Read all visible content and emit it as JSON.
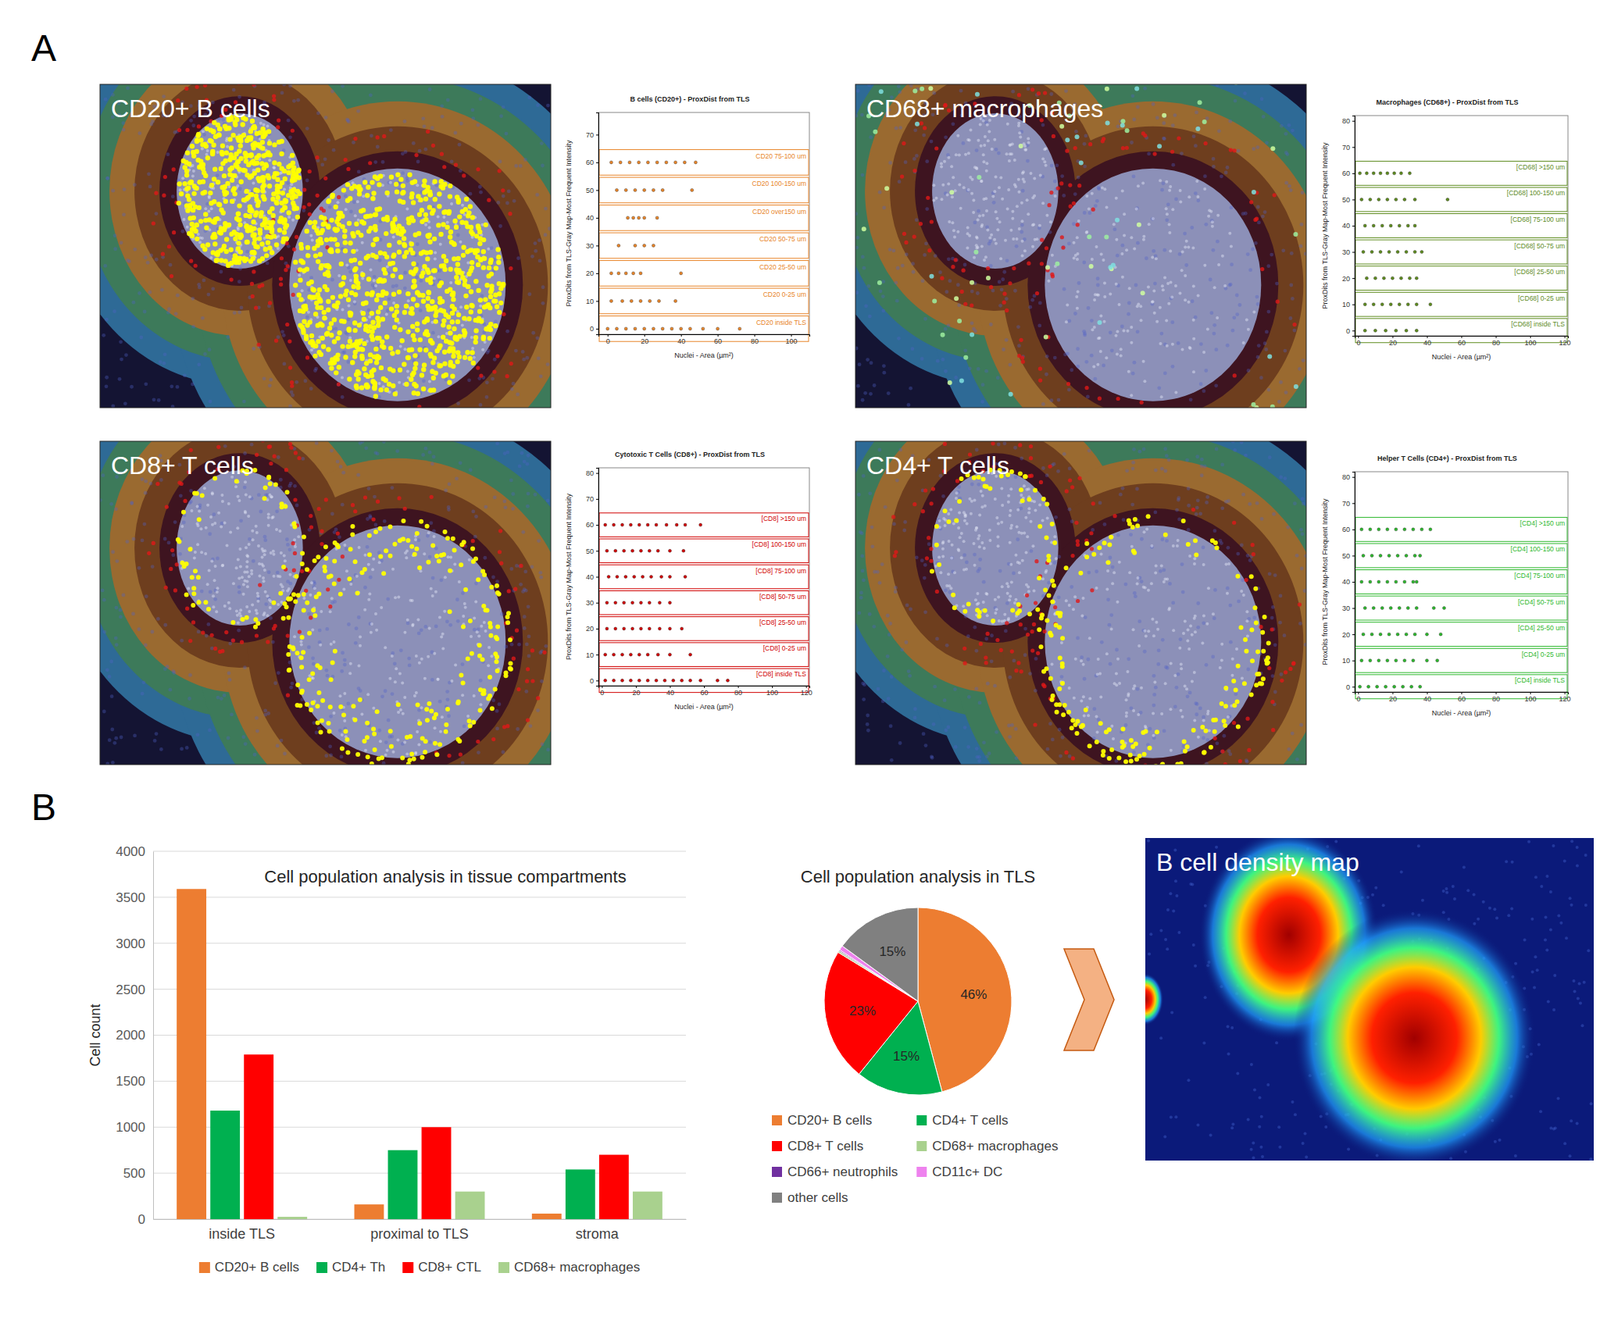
{
  "panel_labels": [
    "A",
    "B"
  ],
  "images": [
    {
      "label": "CD20+ B cells"
    },
    {
      "label": "CD68+ macrophages"
    },
    {
      "label": "CD8+ T cells"
    },
    {
      "label": "CD4+ T cells"
    },
    {
      "label": "B cell density map"
    }
  ],
  "chart_data": [
    {
      "type": "scatter",
      "title": "B cells (CD20+) - ProxDist from TLS",
      "x_label": "Nuclei - Area (µm²)",
      "y_label": "ProxDits from TLS-Gray Map-Most Frequent Intensity",
      "color": "#E8852A",
      "marker": "circle",
      "xlim": [
        -5,
        110
      ],
      "xticks": [
        0,
        20,
        40,
        60,
        80,
        100
      ],
      "ylim": [
        -2,
        78
      ],
      "yticks": [
        0,
        10,
        20,
        30,
        40,
        50,
        60,
        70
      ],
      "series": [
        {
          "name": "CD20 75-100 um",
          "x": [
            2,
            7,
            12,
            17,
            22,
            27,
            32,
            37,
            42,
            48
          ],
          "values": [
            60,
            60,
            60,
            60,
            60,
            60,
            60,
            60,
            60,
            60
          ]
        },
        {
          "name": "CD20 100-150 um",
          "x": [
            5,
            10,
            15,
            20,
            25,
            30,
            46
          ],
          "values": [
            50,
            50,
            50,
            50,
            50,
            50,
            50
          ]
        },
        {
          "name": "CD20 over150 um",
          "x": [
            11,
            14,
            17,
            20,
            27
          ],
          "values": [
            40,
            40,
            40,
            40,
            40
          ]
        },
        {
          "name": "CD20 50-75 um",
          "x": [
            6,
            15,
            20,
            25
          ],
          "values": [
            30,
            30,
            30,
            30
          ]
        },
        {
          "name": "CD20 25-50 um",
          "x": [
            2,
            6,
            10,
            14,
            18,
            40
          ],
          "values": [
            20,
            20,
            20,
            20,
            20,
            20
          ]
        },
        {
          "name": "CD20 0-25 um",
          "x": [
            2,
            8,
            13,
            18,
            23,
            28,
            37
          ],
          "values": [
            10,
            10,
            10,
            10,
            10,
            10,
            10
          ]
        },
        {
          "name": "CD20 inside TLS",
          "x": [
            0,
            5,
            10,
            15,
            20,
            25,
            30,
            35,
            40,
            45,
            52,
            60,
            72
          ],
          "values": [
            0,
            0,
            0,
            0,
            0,
            0,
            0,
            0,
            0,
            0,
            0,
            0,
            0
          ]
        }
      ]
    },
    {
      "type": "scatter",
      "title": "Macrophages (CD68+) - ProxDist from TLS",
      "x_label": "Nuclei - Area (µm²)",
      "y_label": "ProxDits from TLS-Gray Map-Most Frequent Intensity",
      "color": "#5E8C1F",
      "marker": "circle",
      "xlim": [
        -2,
        122
      ],
      "xticks": [
        0,
        20,
        40,
        60,
        80,
        100,
        120
      ],
      "ylim": [
        -2,
        82
      ],
      "yticks": [
        0,
        10,
        20,
        30,
        40,
        50,
        60,
        70,
        80
      ],
      "series": [
        {
          "name": "[CD68] >150 um",
          "x": [
            1,
            5,
            9,
            13,
            17,
            21,
            25,
            30
          ],
          "values": [
            60,
            60,
            60,
            60,
            60,
            60,
            60,
            60
          ]
        },
        {
          "name": "[CD68] 100-150 um",
          "x": [
            2,
            7,
            12,
            17,
            22,
            27,
            33,
            52
          ],
          "values": [
            50,
            50,
            50,
            50,
            50,
            50,
            50,
            50
          ]
        },
        {
          "name": "[CD68] 75-100 um",
          "x": [
            4,
            9,
            14,
            19,
            24,
            29,
            33
          ],
          "values": [
            40,
            40,
            40,
            40,
            40,
            40,
            40
          ]
        },
        {
          "name": "[CD68] 50-75 um",
          "x": [
            3,
            8,
            13,
            18,
            23,
            28,
            33,
            37
          ],
          "values": [
            30,
            30,
            30,
            30,
            30,
            30,
            30,
            30
          ]
        },
        {
          "name": "[CD68] 25-50 um",
          "x": [
            5,
            10,
            15,
            20,
            25,
            30,
            34
          ],
          "values": [
            20,
            20,
            20,
            20,
            20,
            20,
            20
          ]
        },
        {
          "name": "[CD68] 0-25 um",
          "x": [
            4,
            9,
            14,
            19,
            24,
            29,
            34,
            42
          ],
          "values": [
            10,
            10,
            10,
            10,
            10,
            10,
            10,
            10
          ]
        },
        {
          "name": "[CD68] inside TLS",
          "x": [
            4,
            10,
            16,
            22,
            28,
            34
          ],
          "values": [
            0,
            0,
            0,
            0,
            0,
            0
          ]
        }
      ]
    },
    {
      "type": "scatter",
      "title": "Cytotoxic T Cells (CD8+) - ProxDist from TLS",
      "x_label": "Nuclei - Area (µm²)",
      "y_label": "ProxDits from TLS-Gray Map-Most Frequent Intensity",
      "color": "#D10000",
      "marker": "circle",
      "xlim": [
        -2,
        122
      ],
      "xticks": [
        0,
        20,
        40,
        60,
        80,
        100,
        120
      ],
      "ylim": [
        -2,
        82
      ],
      "yticks": [
        0,
        10,
        20,
        30,
        40,
        50,
        60,
        70,
        80
      ],
      "series": [
        {
          "name": "[CD8] >150 um",
          "x": [
            2,
            7,
            12,
            17,
            22,
            27,
            32,
            38,
            44,
            49,
            58
          ],
          "values": [
            60,
            60,
            60,
            60,
            60,
            60,
            60,
            60,
            60,
            60,
            60
          ]
        },
        {
          "name": "[CD8] 100-150 um",
          "x": [
            3,
            8,
            13,
            18,
            23,
            28,
            33,
            40,
            48
          ],
          "values": [
            50,
            50,
            50,
            50,
            50,
            50,
            50,
            50,
            50
          ]
        },
        {
          "name": "[CD8] 75-100 um",
          "x": [
            4,
            9,
            14,
            19,
            24,
            29,
            35,
            40,
            49
          ],
          "values": [
            40,
            40,
            40,
            40,
            40,
            40,
            40,
            40,
            40
          ]
        },
        {
          "name": "[CD8] 50-75 um",
          "x": [
            3,
            8,
            13,
            18,
            23,
            28,
            34,
            40
          ],
          "values": [
            30,
            30,
            30,
            30,
            30,
            30,
            30,
            30
          ]
        },
        {
          "name": "[CD8] 25-50 um",
          "x": [
            3,
            8,
            13,
            18,
            23,
            28,
            34,
            40,
            47
          ],
          "values": [
            20,
            20,
            20,
            20,
            20,
            20,
            20,
            20,
            20
          ]
        },
        {
          "name": "[CD8] 0-25 um",
          "x": [
            2,
            7,
            12,
            17,
            22,
            27,
            33,
            40,
            52
          ],
          "values": [
            10,
            10,
            10,
            10,
            10,
            10,
            10,
            10,
            10
          ]
        },
        {
          "name": "[CD8] inside TLS",
          "x": [
            2,
            7,
            12,
            17,
            22,
            27,
            32,
            37,
            42,
            47,
            52,
            58,
            68,
            74
          ],
          "values": [
            0,
            0,
            0,
            0,
            0,
            0,
            0,
            0,
            0,
            0,
            0,
            0,
            0,
            0
          ]
        }
      ]
    },
    {
      "type": "scatter",
      "title": "Helper T Cells (CD4+) - ProxDist from TLS",
      "x_label": "Nuclei - Area (µm²)",
      "y_label": "ProxDits from TLS-Gray Map-Most Frequent Intensity",
      "color": "#2DB82D",
      "marker": "circle",
      "xlim": [
        -2,
        122
      ],
      "xticks": [
        0,
        20,
        40,
        60,
        80,
        100,
        120
      ],
      "ylim": [
        -2,
        82
      ],
      "yticks": [
        0,
        10,
        20,
        30,
        40,
        50,
        60,
        70,
        80
      ],
      "series": [
        {
          "name": "[CD4] >150 um",
          "x": [
            2,
            7,
            12,
            17,
            22,
            27,
            32,
            37,
            42
          ],
          "values": [
            60,
            60,
            60,
            60,
            60,
            60,
            60,
            60,
            60
          ]
        },
        {
          "name": "[CD4] 100-150 um",
          "x": [
            3,
            8,
            13,
            18,
            23,
            28,
            33,
            36
          ],
          "values": [
            50,
            50,
            50,
            50,
            50,
            50,
            50,
            50
          ]
        },
        {
          "name": "[CD4] 75-100 um",
          "x": [
            2,
            7,
            12,
            17,
            22,
            27,
            32,
            34
          ],
          "values": [
            40,
            40,
            40,
            40,
            40,
            40,
            40,
            40
          ]
        },
        {
          "name": "[CD4] 50-75 um",
          "x": [
            4,
            9,
            14,
            19,
            24,
            29,
            34,
            44,
            50
          ],
          "values": [
            30,
            30,
            30,
            30,
            30,
            30,
            30,
            30,
            30
          ]
        },
        {
          "name": "[CD4] 25-50 um",
          "x": [
            3,
            8,
            13,
            18,
            23,
            28,
            33,
            40,
            48
          ],
          "values": [
            20,
            20,
            20,
            20,
            20,
            20,
            20,
            20,
            20
          ]
        },
        {
          "name": "[CD4] 0-25 um",
          "x": [
            2,
            7,
            12,
            17,
            22,
            27,
            32,
            40,
            46
          ],
          "values": [
            10,
            10,
            10,
            10,
            10,
            10,
            10,
            10,
            10
          ]
        },
        {
          "name": "[CD4] inside TLS",
          "x": [
            1,
            6,
            11,
            16,
            21,
            26,
            31,
            36
          ],
          "values": [
            0,
            0,
            0,
            0,
            0,
            0,
            0,
            0
          ]
        }
      ]
    },
    {
      "type": "bar",
      "title": "Cell population analysis in tissue compartments",
      "y_label": "Cell count",
      "categories": [
        "inside TLS",
        "proximal to TLS",
        "stroma"
      ],
      "series": [
        {
          "name": "CD20+ B cells",
          "color": "#ED7D31",
          "values": [
            3590,
            160,
            60
          ]
        },
        {
          "name": "CD4+ Th",
          "color": "#00B050",
          "values": [
            1180,
            750,
            540
          ]
        },
        {
          "name": "CD8+ CTL",
          "color": "#FF0000",
          "values": [
            1790,
            1000,
            700
          ]
        },
        {
          "name": "CD68+ macrophages",
          "color": "#A9D18E",
          "values": [
            25,
            300,
            300
          ]
        }
      ],
      "ylim": [
        0,
        4000
      ],
      "yticks": [
        0,
        500,
        1000,
        1500,
        2000,
        2500,
        3000,
        3500,
        4000
      ],
      "grid": true,
      "legend": "bottom"
    },
    {
      "type": "pie",
      "title": "Cell population analysis in TLS",
      "categories": [
        "CD20+ B cells",
        "CD4+ T cells",
        "CD8+ T cells",
        "CD68+ macrophages",
        "CD66+ neutrophils",
        "CD11c+ DC",
        "other cells"
      ],
      "values": [
        46,
        15,
        23,
        0.3,
        0.2,
        0.8,
        15
      ],
      "colors": [
        "#ED7D31",
        "#00B050",
        "#FF0000",
        "#A9D18E",
        "#7030A0",
        "#EE82EE",
        "#808080"
      ],
      "data_labels": true,
      "value_labels": [
        "46%",
        "15%",
        "23%",
        null,
        null,
        null,
        "15%"
      ],
      "legend": "bottom"
    }
  ]
}
